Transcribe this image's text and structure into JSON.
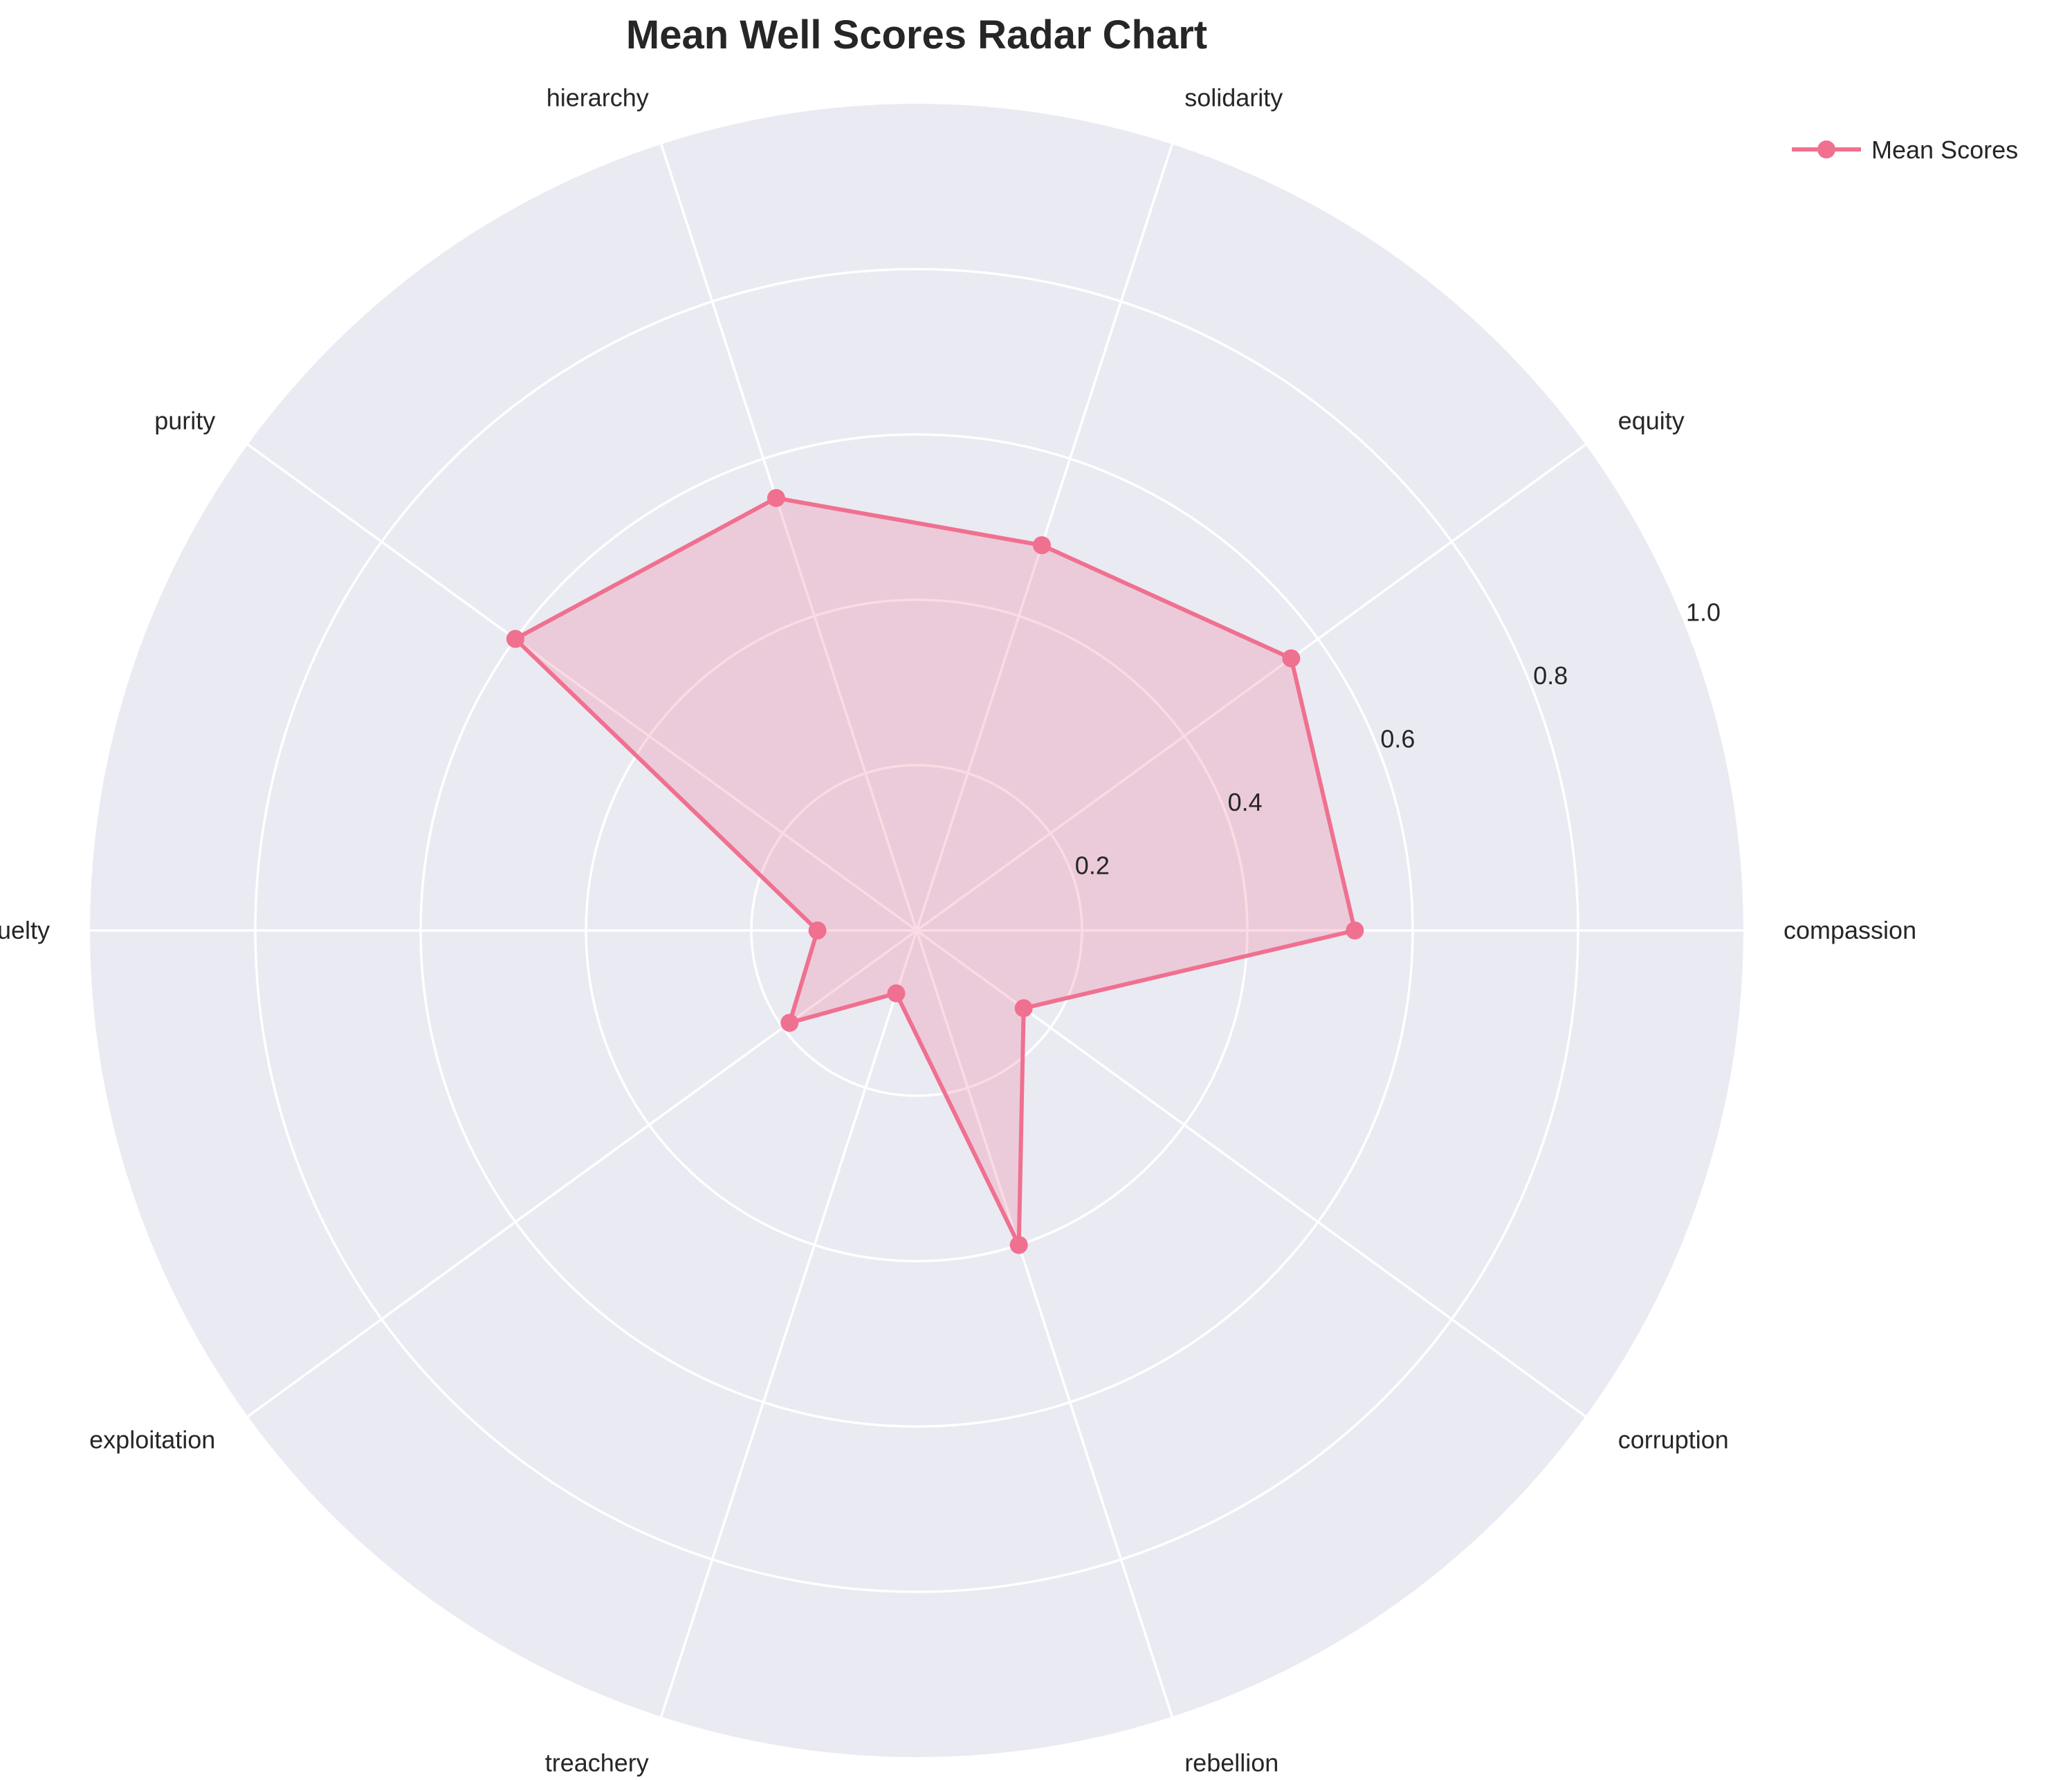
{
  "chart_data": {
    "type": "radar",
    "title": "Mean Well Scores Radar Chart",
    "categories": [
      "compassion",
      "equity",
      "solidarity",
      "hierarchy",
      "purity",
      "cruelty",
      "exploitation",
      "treachery",
      "rebellion",
      "corruption"
    ],
    "series": [
      {
        "name": "Mean Scores",
        "values": [
          0.53,
          0.56,
          0.49,
          0.55,
          0.6,
          0.12,
          0.19,
          0.08,
          0.4,
          0.16
        ],
        "color": "#f07090"
      }
    ],
    "rlim": [
      0,
      1.0
    ],
    "rticks": [
      0.2,
      0.4,
      0.6,
      0.8,
      1.0
    ],
    "rtick_labels": [
      "0.2",
      "0.4",
      "0.6",
      "0.8",
      "1.0"
    ],
    "grid": true,
    "legend": "top-right",
    "background_color": "#eaeaf2",
    "grid_color": "#ffffff"
  }
}
